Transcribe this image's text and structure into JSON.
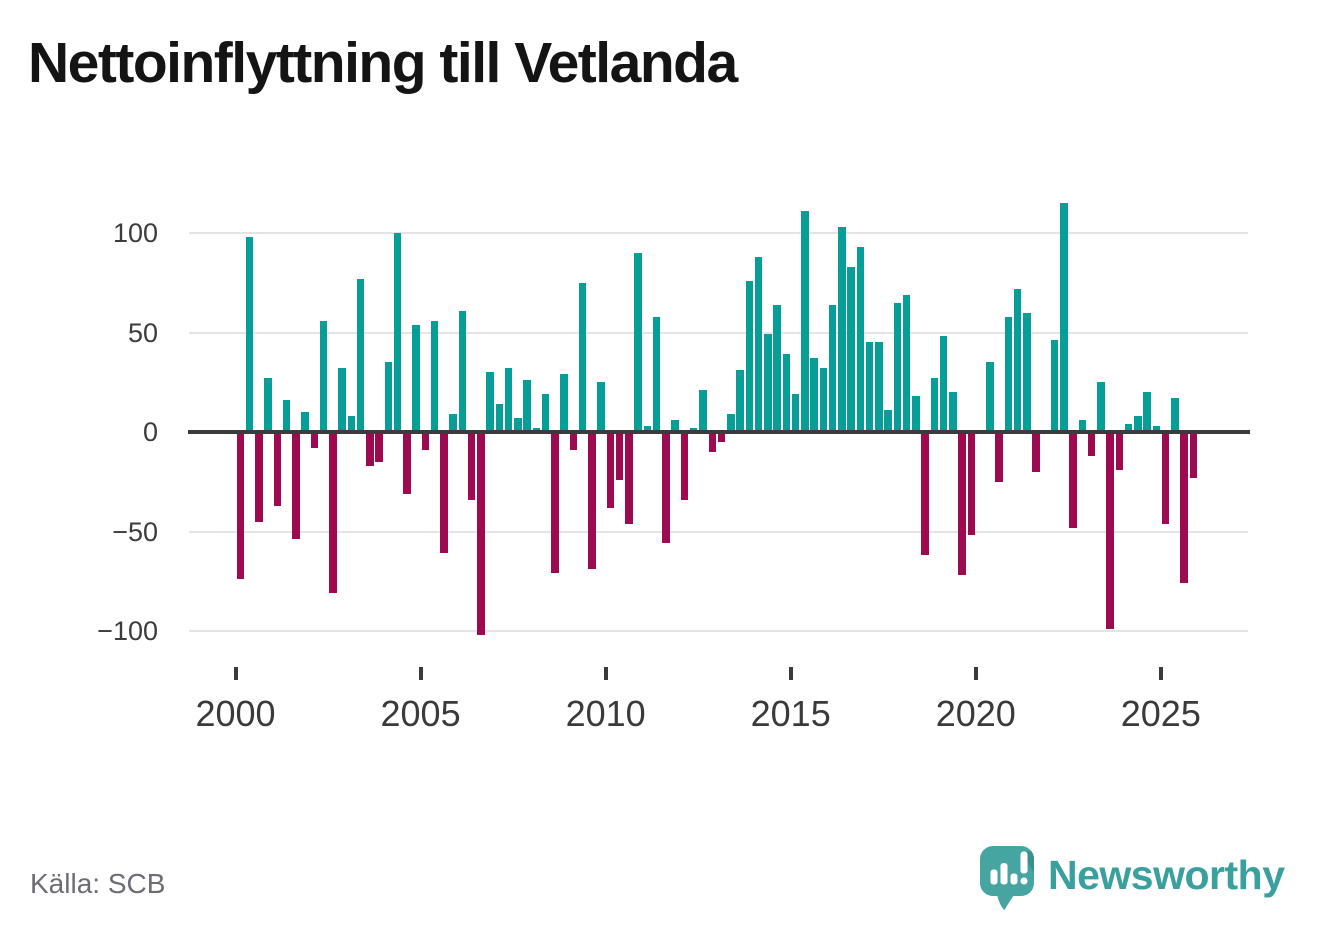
{
  "title": "Nettoinflyttning till Vetlanda",
  "source": "Källa: SCB",
  "brand": {
    "name": "Newsworthy",
    "color": "#3aa09e"
  },
  "colors": {
    "positive_bar": "#069e96",
    "negative_bar": "#9e0a4f",
    "zero_line": "#3b3b3b",
    "gridline": "#e4e4e4",
    "axis_text": "#3c3c3c",
    "title_text": "#141414",
    "source_text": "#6c6c75",
    "logo_bubble": "#47a5a1",
    "logo_bubble_fold": "#3a8f8c"
  },
  "chart_data": {
    "type": "bar",
    "title": "Nettoinflyttning till Vetlanda",
    "xlabel": "",
    "ylabel": "",
    "frequency": "quarterly",
    "x_start": "2000 Q1",
    "x_end": "2025 Q4",
    "ylim": [
      -115,
      120
    ],
    "grid": true,
    "legend": "none",
    "y_ticks": [
      {
        "v": 100,
        "label": "100"
      },
      {
        "v": 50,
        "label": "50"
      },
      {
        "v": 0,
        "label": "0"
      },
      {
        "v": -50,
        "label": "−50"
      },
      {
        "v": -100,
        "label": "−100"
      }
    ],
    "x_ticks": [
      {
        "label": "2000"
      },
      {
        "label": "2005"
      },
      {
        "label": "2010"
      },
      {
        "label": "2015"
      },
      {
        "label": "2020"
      },
      {
        "label": "2025"
      }
    ],
    "series": [
      {
        "name": "Nettoinflyttning",
        "values": [
          -74,
          98,
          -45,
          27,
          -37,
          16,
          -54,
          10,
          -8,
          56,
          -81,
          32,
          8,
          77,
          -17,
          -15,
          35,
          100,
          -31,
          54,
          -9,
          56,
          -61,
          9,
          61,
          -34,
          -102,
          30,
          14,
          32,
          7,
          26,
          2,
          19,
          -71,
          29,
          -9,
          75,
          -69,
          25,
          -38,
          -24,
          -46,
          90,
          3,
          58,
          -56,
          6,
          -34,
          2,
          21,
          -10,
          -5,
          9,
          31,
          76,
          88,
          49,
          64,
          39,
          19,
          111,
          37,
          32,
          64,
          103,
          83,
          93,
          45,
          45,
          11,
          65,
          69,
          18,
          -62,
          27,
          48,
          20,
          -72,
          -52,
          0,
          35,
          -25,
          58,
          72,
          60,
          -20,
          0,
          46,
          115,
          -48,
          6,
          -12,
          25,
          -99,
          -19,
          4,
          8,
          20,
          3,
          -46,
          17,
          -76,
          -23
        ]
      }
    ]
  }
}
